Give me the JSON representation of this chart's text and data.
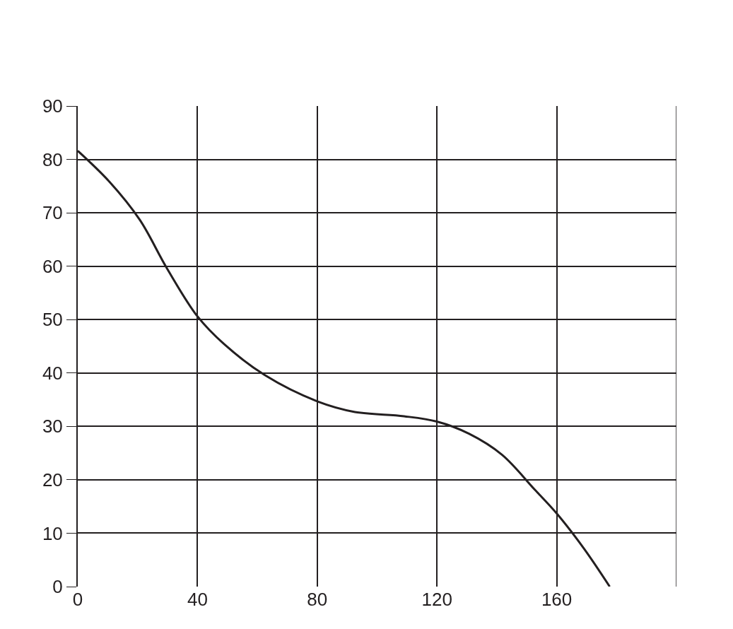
{
  "chart_data": {
    "type": "line",
    "x": [
      0,
      10.6,
      20.7,
      29.8,
      40,
      48.9,
      62.5,
      80,
      92.6,
      109,
      120,
      130.8,
      141.7,
      152.6,
      160,
      169,
      177.7
    ],
    "series": [
      {
        "color": "#231f20",
        "values": [
          81.6,
          75.8,
          68.7,
          59.6,
          50.6,
          45.4,
          39.6,
          34.7,
          32.7,
          31.9,
          30.9,
          28.6,
          24.7,
          18.2,
          13.7,
          7.2,
          0
        ]
      }
    ],
    "xlim": [
      0,
      200
    ],
    "xticks": [
      0,
      40,
      80,
      120,
      160
    ],
    "ylim": [
      0,
      90
    ],
    "yticks": [
      0,
      10,
      20,
      30,
      40,
      50,
      60,
      70,
      80,
      90
    ],
    "grid": true,
    "marker": "none",
    "line_style": "solid"
  }
}
